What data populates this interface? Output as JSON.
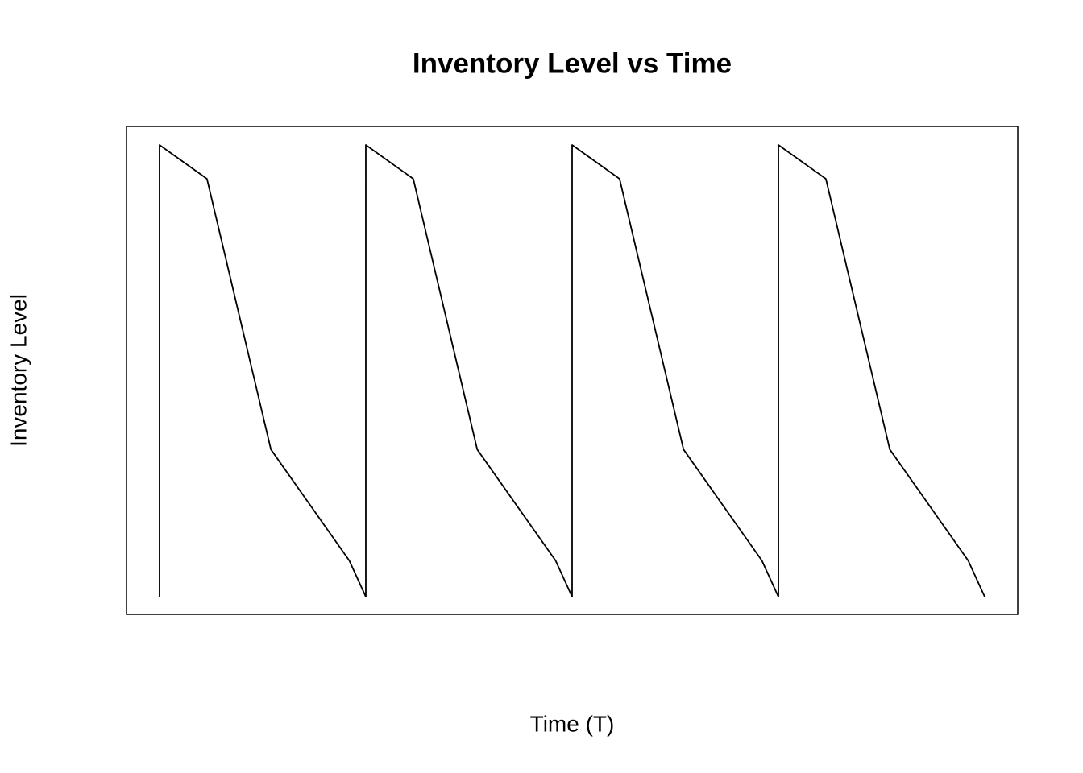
{
  "chart_data": {
    "type": "line",
    "title": "Inventory Level vs Time",
    "x_label": "Time (T)",
    "y_label": "Inventory Level",
    "x": [
      0,
      0,
      0.23,
      0.54,
      0.92,
      1,
      1,
      1.23,
      1.54,
      1.92,
      2,
      2,
      2.23,
      2.54,
      2.92,
      3,
      3,
      3.23,
      3.54,
      3.92,
      4
    ],
    "series": [
      {
        "color": "#000000",
        "values": [
          0,
          100,
          92.5,
          32.6,
          8,
          0,
          100,
          92.5,
          32.6,
          8,
          0,
          100,
          92.5,
          32.6,
          8,
          0,
          100,
          92.5,
          32.6,
          8,
          0
        ]
      }
    ],
    "xlim": [
      -0.16,
      4.16
    ],
    "ylim": [
      -3.9,
      104.1
    ]
  }
}
